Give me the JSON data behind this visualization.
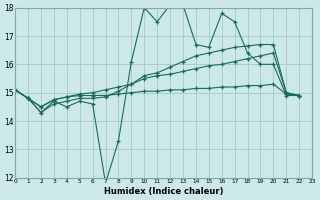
{
  "xlabel": "Humidex (Indice chaleur)",
  "bg_color": "#cce8e8",
  "grid_color": "#aacccc",
  "line_color": "#1a6b5a",
  "xmin": 0,
  "xmax": 23,
  "ymin": 12,
  "ymax": 18,
  "lines": [
    [
      15.1,
      14.8,
      14.3,
      14.7,
      14.5,
      14.7,
      14.6,
      11.8,
      13.3,
      16.1,
      18.0,
      17.5,
      18.1,
      18.1,
      16.7,
      16.6,
      17.8,
      17.5,
      16.4,
      16.0,
      16.0,
      14.9,
      14.9
    ],
    [
      15.1,
      14.8,
      14.3,
      14.6,
      14.7,
      14.8,
      14.8,
      14.85,
      15.05,
      15.3,
      15.6,
      15.7,
      15.9,
      16.1,
      16.3,
      16.4,
      16.5,
      16.6,
      16.65,
      16.7,
      16.7,
      15.0,
      14.9
    ],
    [
      15.1,
      14.8,
      14.5,
      14.75,
      14.85,
      14.95,
      15.0,
      15.1,
      15.2,
      15.3,
      15.5,
      15.6,
      15.65,
      15.75,
      15.85,
      15.95,
      16.0,
      16.1,
      16.2,
      16.3,
      16.4,
      15.0,
      14.9
    ],
    [
      15.1,
      14.8,
      14.5,
      14.75,
      14.85,
      14.9,
      14.9,
      14.9,
      14.95,
      15.0,
      15.05,
      15.05,
      15.1,
      15.1,
      15.15,
      15.15,
      15.2,
      15.2,
      15.25,
      15.25,
      15.3,
      14.95,
      14.9
    ]
  ]
}
